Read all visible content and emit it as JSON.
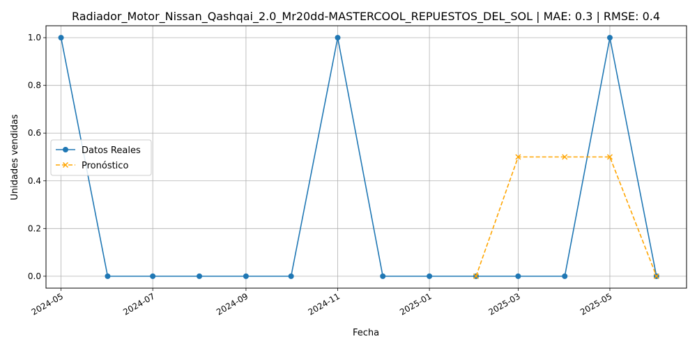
{
  "chart_data": {
    "type": "line",
    "title": "Radiador_Motor_Nissan_Qashqai_2.0_Mr20dd-MASTERCOOL_REPUESTOS_DEL_SOL | MAE: 0.3 | RMSE: 0.4",
    "xlabel": "Fecha",
    "ylabel": "Unidades vendidas",
    "x_ticks": [
      "2024-05",
      "2024-07",
      "2024-09",
      "2024-11",
      "2025-01",
      "2025-03",
      "2025-05"
    ],
    "y_ticks": [
      "0.0",
      "0.2",
      "0.4",
      "0.6",
      "0.8",
      "1.0"
    ],
    "xlim": [
      "2024-04-21",
      "2025-06-21"
    ],
    "ylim": [
      -0.05,
      1.05
    ],
    "grid": true,
    "legend_position": "center-left",
    "series": [
      {
        "name": "Datos Reales",
        "color": "#1f77b4",
        "style": "solid",
        "marker": "circle",
        "x": [
          "2024-05-01",
          "2024-06-01",
          "2024-07-01",
          "2024-08-01",
          "2024-09-01",
          "2024-10-01",
          "2024-11-01",
          "2024-12-01",
          "2025-01-01",
          "2025-02-01",
          "2025-03-01",
          "2025-04-01",
          "2025-05-01",
          "2025-06-01"
        ],
        "values": [
          1,
          0,
          0,
          0,
          0,
          0,
          1,
          0,
          0,
          0,
          0,
          0,
          1,
          0
        ]
      },
      {
        "name": "Pronóstico",
        "color": "#ffa500",
        "style": "dashed",
        "marker": "x",
        "x": [
          "2025-02-01",
          "2025-03-01",
          "2025-04-01",
          "2025-05-01",
          "2025-06-01"
        ],
        "values": [
          0,
          0.5,
          0.5,
          0.5,
          0
        ]
      }
    ]
  }
}
